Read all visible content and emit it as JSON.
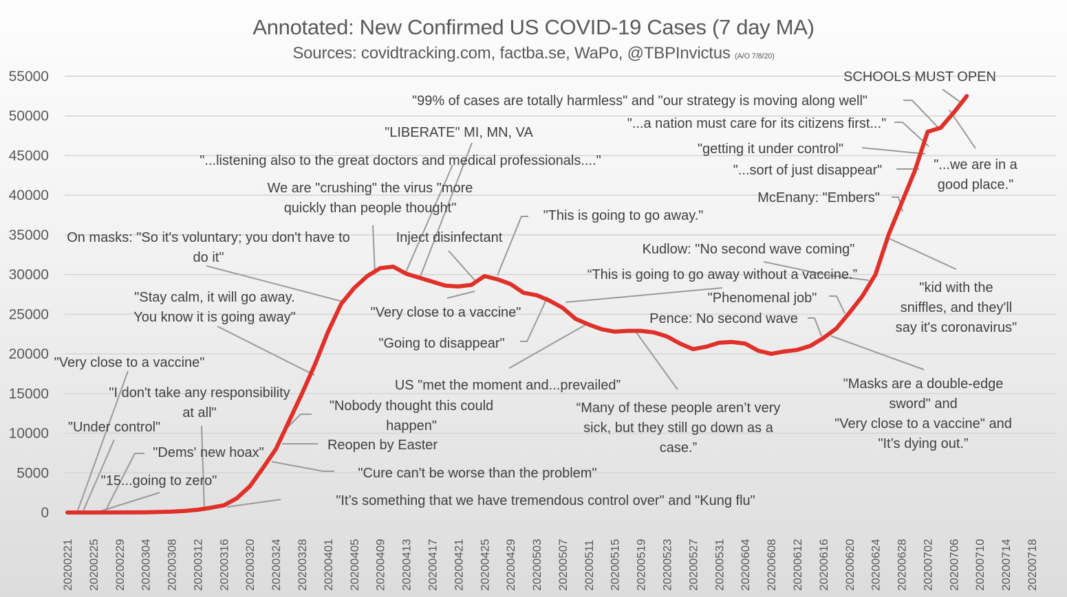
{
  "header": {
    "title": "Annotated: New Confirmed US COVID-19 Cases (7 day MA)",
    "subtitle": "Sources: covidtracking.com, factba.se, WaPo, @TBPInvictus",
    "subtitle_note": "(A/O 7/8/20)"
  },
  "colors": {
    "line": "#e0302a",
    "gridline": "#d4d4d4",
    "leader": "#9a9a9a",
    "text": "#404040"
  },
  "chart_data": {
    "type": "line",
    "title": "Annotated: New Confirmed US COVID-19 Cases (7 day MA)",
    "subtitle": "Sources: covidtracking.com, factba.se, WaPo, @TBPInvictus (A/O 7/8/20)",
    "xlabel": "",
    "ylabel": "",
    "ylim": [
      0,
      55000
    ],
    "yticks": [
      "0",
      "5000",
      "10000",
      "15000",
      "20000",
      "25000",
      "30000",
      "35000",
      "40000",
      "45000",
      "50000",
      "55000"
    ],
    "xticks": [
      "20200221",
      "20200225",
      "20200229",
      "20200304",
      "20200308",
      "20200312",
      "20200316",
      "20200320",
      "20200324",
      "20200328",
      "20200401",
      "20200405",
      "20200409",
      "20200413",
      "20200417",
      "20200421",
      "20200425",
      "20200429",
      "20200503",
      "20200507",
      "20200511",
      "20200515",
      "20200519",
      "20200523",
      "20200527",
      "20200531",
      "20200604",
      "20200608",
      "20200612",
      "20200616",
      "20200620",
      "20200624",
      "20200628",
      "20200702",
      "20200706",
      "20200710",
      "20200714",
      "20200718"
    ],
    "grid": true,
    "legend": "none",
    "series": [
      {
        "name": "New Confirmed US COVID-19 Cases (7 day MA)",
        "x": [
          "20200221",
          "20200225",
          "20200229",
          "20200304",
          "20200308",
          "20200310",
          "20200312",
          "20200314",
          "20200316",
          "20200318",
          "20200320",
          "20200322",
          "20200324",
          "20200326",
          "20200328",
          "20200330",
          "20200401",
          "20200403",
          "20200405",
          "20200407",
          "20200409",
          "20200411",
          "20200413",
          "20200415",
          "20200417",
          "20200419",
          "20200421",
          "20200423",
          "20200425",
          "20200427",
          "20200429",
          "20200501",
          "20200503",
          "20200505",
          "20200507",
          "20200509",
          "20200511",
          "20200513",
          "20200515",
          "20200517",
          "20200519",
          "20200521",
          "20200523",
          "20200525",
          "20200527",
          "20200529",
          "20200531",
          "20200602",
          "20200604",
          "20200606",
          "20200608",
          "20200610",
          "20200612",
          "20200614",
          "20200616",
          "20200618",
          "20200620",
          "20200622",
          "20200624",
          "20200626",
          "20200628",
          "20200630",
          "20200702",
          "20200704",
          "20200706",
          "20200708"
        ],
        "values": [
          0,
          0,
          10,
          30,
          100,
          200,
          350,
          600,
          900,
          1800,
          3300,
          5600,
          8000,
          11500,
          15000,
          18700,
          22800,
          26300,
          28300,
          29800,
          30800,
          31000,
          30100,
          29600,
          29100,
          28600,
          28500,
          28700,
          29800,
          29400,
          28800,
          27700,
          27400,
          26700,
          25800,
          24400,
          23700,
          23100,
          22800,
          22900,
          22900,
          22700,
          22200,
          21300,
          20600,
          20900,
          21400,
          21500,
          21300,
          20400,
          20000,
          20300,
          20500,
          21000,
          22000,
          23200,
          25200,
          27300,
          30000,
          35000,
          39000,
          43000,
          48000,
          48500,
          50400,
          52500
        ]
      }
    ],
    "annotations": [
      {
        "text": "SCHOOLS MUST OPEN",
        "date": "20200707"
      },
      {
        "text": "\"99% of cases are totally harmless\" and \"our strategy is moving along well\"",
        "date": "20200704"
      },
      {
        "text": "\"...a nation must care for its citizens first...\"",
        "date": "20200702"
      },
      {
        "text": "\"getting it under control\"",
        "date": "20200701"
      },
      {
        "text": "\"...sort of just disappear\"",
        "date": "20200630"
      },
      {
        "text": "\"...we are in a good place.\"",
        "date": "20200707"
      },
      {
        "text": "McEnany: \"Embers\"",
        "date": "20200629"
      },
      {
        "text": "\"kid with the sniffles, and they'll say it's coronavirus\"",
        "date": "20200627"
      },
      {
        "text": "Kudlow: \"No second wave coming\"",
        "date": "20200624"
      },
      {
        "text": "“This is going to go away without a vaccine.”",
        "date": "20200624"
      },
      {
        "text": "\"Phenomenal job\"",
        "date": "20200621"
      },
      {
        "text": "Pence: No second wave",
        "date": "20200616"
      },
      {
        "text": "\"Masks are a double-edge sword\" and \"Very close to a vaccine\" and \"It’s dying out.”",
        "date": "20200617"
      },
      {
        "text": "\"LIBERATE\" MI, MN, VA",
        "date": "20200417"
      },
      {
        "text": "\"...listening also to the great doctors and medical professionals....\"",
        "date": "20200413"
      },
      {
        "text": "We are \"crushing\" the virus \"more quickly than people thought\"",
        "date": "20200408"
      },
      {
        "text": "Inject disinfectant",
        "date": "20200424"
      },
      {
        "text": "\"This is going to go away.\"",
        "date": "20200426"
      },
      {
        "text": "On masks: \"So it's voluntary; you don't have to do it\"",
        "date": "20200403"
      },
      {
        "text": "\"Stay calm, it will go away. You know it is going away\"",
        "date": "20200330"
      },
      {
        "text": "\"Very close to a vaccine\"",
        "date": "20200422"
      },
      {
        "text": "\"Going to disappear\"",
        "date": "20200504"
      },
      {
        "text": "US \"met the moment and...prevailed”",
        "date": "20200511"
      },
      {
        "text": "“Many of these people aren’t very sick, but they still go down as a case.”",
        "date": "20200518"
      },
      {
        "text": "\"Very close to a vaccine\"",
        "date": "20200222"
      },
      {
        "text": "\"I don't take any responsibility at all\"",
        "date": "20200313"
      },
      {
        "text": "\"Under control\"",
        "date": "20200223"
      },
      {
        "text": "\"Dems' new hoax\"",
        "date": "20200228"
      },
      {
        "text": "\"15...going to zero\"",
        "date": "20200226"
      },
      {
        "text": "\"Nobody thought this could happen\"",
        "date": "20200327"
      },
      {
        "text": "Reopen by Easter",
        "date": "20200325"
      },
      {
        "text": "\"Cure can't be worse than the problem\"",
        "date": "20200323"
      },
      {
        "text": "\"It’s something that we have tremendous control over\" and \"Kung flu\"",
        "date": "20200318"
      }
    ]
  },
  "labels": {
    "schools": "SCHOOLS MUST OPEN",
    "harmless": "\"99% of cases are totally harmless\" and \"our strategy is moving along well\"",
    "nation": "\"...a nation must care for its citizens first...\"",
    "liberate": "\"LIBERATE\" MI, MN, VA",
    "under_control2": "\"getting it under control\"",
    "listening": "\"...listening also to the great doctors and medical professionals....\"",
    "sort_of": "\"...sort of just disappear\"",
    "good_place_1": "\"...we are in a",
    "good_place_2": "good place.\"",
    "crushing_1": "We are \"crushing\" the virus \"more",
    "crushing_2": "quickly than people thought\"",
    "embers": "McEnany: \"Embers\"",
    "go_away": "\"This is going to go away.\"",
    "masks_1": "On masks: \"So it's voluntary; you don't have to",
    "masks_2": "do it\"",
    "inject": "Inject disinfectant",
    "kudlow": "Kudlow:  \"No second wave coming\"",
    "without_vaccine": "“This is going to go away without a vaccine.”",
    "kid_1": "\"kid with the",
    "kid_2": "sniffles, and they'll",
    "kid_3": "say it's coronavirus\"",
    "stay_calm_1": "\"Stay calm, it will go away.",
    "stay_calm_2": "You know it is going away\"",
    "vaccine_mid": "\"Very close to a vaccine\"",
    "phenomenal": "\"Phenomenal  job\"",
    "pence": "Pence: No second wave",
    "disappear": "\"Going to disappear\"",
    "vaccine_early": "\"Very close to a vaccine\"",
    "met_moment": "US \"met the moment and...prevailed”",
    "masks_edge_1": "\"Masks are a double-edge",
    "masks_edge_2": "sword\" and",
    "masks_edge_3": "\"Very close to a vaccine\" and",
    "masks_edge_4": "\"It’s dying out.”",
    "responsibility_1": "\"I don't take any responsibility",
    "responsibility_2": "at all\"",
    "nobody_1": "\"Nobody thought this could",
    "nobody_2": "happen\"",
    "many_1": "“Many of these people aren’t very",
    "many_2": "sick, but they still go down as a",
    "many_3": "case.”",
    "under_control": "\"Under control\"",
    "easter": "Reopen by Easter",
    "hoax": "\"Dems' new hoax\"",
    "cure": "\"Cure can't be worse than the problem\"",
    "zero": "\"15...going to zero\"",
    "kung_flu": "\"It’s something that we have tremendous  control over\"  and \"Kung flu\""
  }
}
